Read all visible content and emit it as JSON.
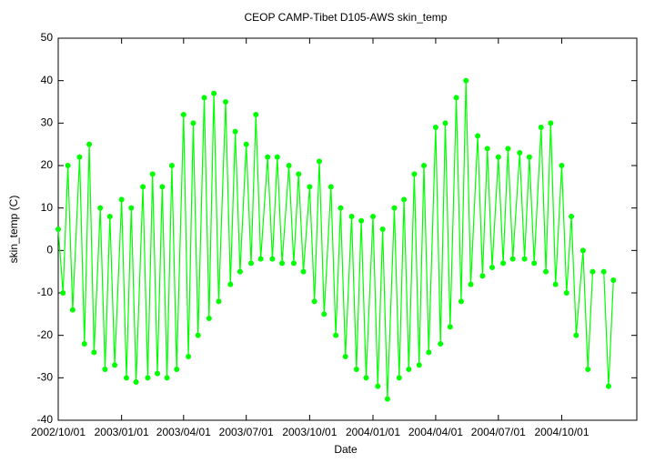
{
  "chart_data": {
    "type": "line",
    "title": "CEOP CAMP-Tibet D105-AWS  skin_temp",
    "x_label": "Date",
    "y_label": "skin_temp (C)",
    "xlim": [
      "2002/10/01",
      "2005/01/18"
    ],
    "xticks": [
      "2002/10/01",
      "2003/01/01",
      "2003/04/01",
      "2003/07/01",
      "2003/10/01",
      "2004/01/01",
      "2004/04/01",
      "2004/07/01",
      "2004/10/01"
    ],
    "ylim": [
      -40,
      50
    ],
    "yticks": [
      -40,
      -30,
      -20,
      -10,
      0,
      10,
      20,
      30,
      40,
      50
    ],
    "grid": false,
    "x": [
      "2002/10/01",
      "2002/10/08",
      "2002/10/15",
      "2002/10/22",
      "2002/11/01",
      "2002/11/08",
      "2002/11/15",
      "2002/11/22",
      "2002/12/01",
      "2002/12/08",
      "2002/12/15",
      "2002/12/22",
      "2003/01/01",
      "2003/01/08",
      "2003/01/15",
      "2003/01/22",
      "2003/02/01",
      "2003/02/08",
      "2003/02/15",
      "2003/02/22",
      "2003/03/01",
      "2003/03/08",
      "2003/03/15",
      "2003/03/22",
      "2003/04/01",
      "2003/04/08",
      "2003/04/15",
      "2003/04/22",
      "2003/05/01",
      "2003/05/08",
      "2003/05/15",
      "2003/05/22",
      "2003/06/01",
      "2003/06/08",
      "2003/06/15",
      "2003/06/22",
      "2003/07/01",
      "2003/07/08",
      "2003/07/15",
      "2003/07/22",
      "2003/08/01",
      "2003/08/08",
      "2003/08/15",
      "2003/08/22",
      "2003/09/01",
      "2003/09/08",
      "2003/09/15",
      "2003/09/22",
      "2003/10/01",
      "2003/10/08",
      "2003/10/15",
      "2003/10/22",
      "2003/11/01",
      "2003/11/08",
      "2003/11/15",
      "2003/11/22",
      "2003/12/01",
      "2003/12/08",
      "2003/12/15",
      "2003/12/22",
      "2004/01/01",
      "2004/01/08",
      "2004/01/15",
      "2004/01/22",
      "2004/02/01",
      "2004/02/08",
      "2004/02/15",
      "2004/02/22",
      "2004/03/01",
      "2004/03/08",
      "2004/03/15",
      "2004/03/22",
      "2004/04/01",
      "2004/04/08",
      "2004/04/15",
      "2004/04/22",
      "2004/05/01",
      "2004/05/08",
      "2004/05/15",
      "2004/05/22",
      "2004/06/01",
      "2004/06/08",
      "2004/06/15",
      "2004/06/22",
      "2004/07/01",
      "2004/07/08",
      "2004/07/15",
      "2004/07/22",
      "2004/08/01",
      "2004/08/08",
      "2004/08/15",
      "2004/08/22",
      "2004/09/01",
      "2004/09/08",
      "2004/09/15",
      "2004/09/22",
      "2004/10/01",
      "2004/10/08",
      "2004/10/15",
      "2004/10/22",
      "2004/11/01",
      "2004/11/08",
      "2004/11/15",
      "2004/11/22",
      "2004/12/01",
      "2004/12/08",
      "2004/12/15"
    ],
    "series": [
      {
        "color": "#00ff00",
        "values": [
          5,
          -10,
          20,
          -14,
          22,
          -22,
          25,
          -24,
          10,
          -28,
          8,
          -27,
          12,
          -30,
          10,
          -31,
          15,
          -30,
          18,
          -29,
          15,
          -30,
          20,
          -28,
          32,
          -25,
          30,
          -20,
          36,
          -16,
          37,
          -12,
          35,
          -8,
          28,
          -5,
          25,
          -3,
          32,
          -2,
          22,
          -2,
          22,
          -3,
          20,
          -3,
          18,
          -5,
          15,
          -12,
          21,
          -15,
          15,
          -20,
          10,
          -25,
          8,
          -28,
          7,
          -30,
          8,
          -32,
          5,
          -35,
          10,
          -30,
          12,
          -28,
          18,
          -27,
          20,
          -24,
          29,
          -22,
          30,
          -18,
          36,
          -12,
          40,
          -8,
          27,
          -6,
          24,
          -4,
          22,
          -3,
          24,
          -2,
          23,
          -2,
          22,
          -3,
          29,
          -5,
          30,
          -8,
          20,
          -10,
          8,
          -20,
          0,
          -28,
          -5,
          null,
          -5,
          -32,
          -7
        ]
      }
    ]
  }
}
